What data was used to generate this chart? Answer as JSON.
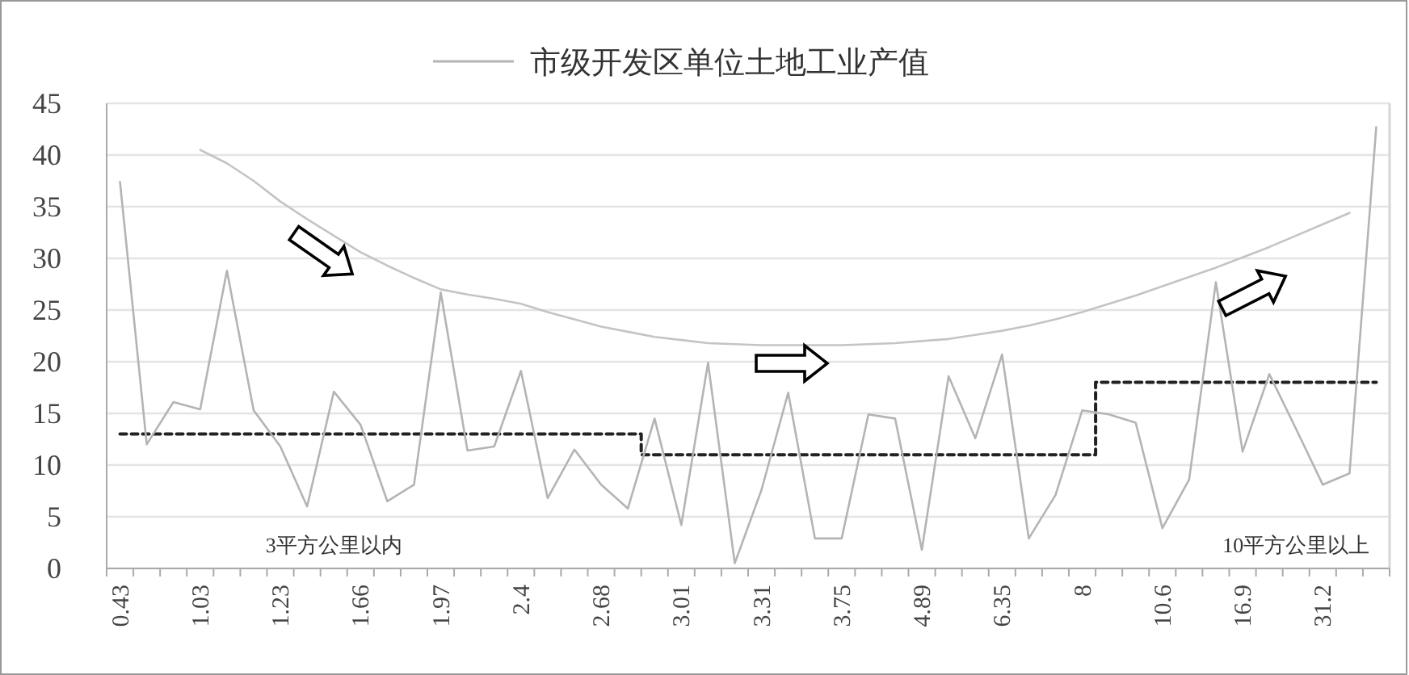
{
  "chart_data": {
    "type": "line",
    "categories": [
      "0.43",
      null,
      null,
      "1.03",
      null,
      null,
      "1.23",
      null,
      null,
      "1.66",
      null,
      null,
      "1.97",
      null,
      null,
      "2.4",
      null,
      null,
      "2.68",
      null,
      null,
      "3.01",
      null,
      null,
      "3.31",
      null,
      null,
      "3.75",
      null,
      null,
      "4.89",
      null,
      null,
      "6.35",
      null,
      null,
      "8",
      null,
      null,
      "10.6",
      null,
      null,
      "16.9",
      null,
      null,
      "31.2",
      null,
      null
    ],
    "series": [
      {
        "name": "市级开发区单位土地工业产值",
        "color": "#b4b4b4",
        "values": [
          37.4,
          12.0,
          16.1,
          15.4,
          28.8,
          15.3,
          11.8,
          6.0,
          17.1,
          13.9,
          6.5,
          8.1,
          26.7,
          11.4,
          11.8,
          19.1,
          6.8,
          11.5,
          8.1,
          5.8,
          14.5,
          4.2,
          19.9,
          0.5,
          7.6,
          17.0,
          2.9,
          2.9,
          14.9,
          14.5,
          1.8,
          18.6,
          12.6,
          20.7,
          2.9,
          7.1,
          15.3,
          14.9,
          14.1,
          3.9,
          8.6,
          27.7,
          11.3,
          18.8,
          13.5,
          8.1,
          9.2,
          42.7
        ]
      },
      {
        "type": "line",
        "color": "#c4c4c4",
        "values": [
          null,
          null,
          null,
          40.5,
          39.2,
          37.5,
          35.5,
          33.8,
          32.2,
          30.6,
          29.3,
          28.1,
          27.0,
          26.5,
          26.1,
          25.6,
          24.8,
          24.1,
          23.4,
          22.9,
          22.4,
          22.1,
          21.8,
          21.7,
          21.6,
          21.6,
          21.6,
          21.6,
          21.7,
          21.8,
          22.0,
          22.2,
          22.6,
          23.0,
          23.5,
          24.1,
          24.8,
          25.6,
          26.4,
          27.3,
          28.2,
          29.1,
          30.1,
          31.1,
          32.2,
          33.3,
          34.4,
          null
        ]
      },
      {
        "type": "step",
        "color": "#222222",
        "line_style": "dashed",
        "values": [
          13,
          13,
          13,
          13,
          13,
          13,
          13,
          13,
          13,
          13,
          13,
          13,
          13,
          13,
          13,
          13,
          13,
          13,
          13,
          13,
          11,
          11,
          11,
          11,
          11,
          11,
          11,
          11,
          11,
          11,
          11,
          11,
          11,
          11,
          11,
          11,
          11,
          18,
          18,
          18,
          18,
          18,
          18,
          18,
          18,
          18,
          18,
          18
        ]
      }
    ],
    "ylim": [
      0,
      45
    ],
    "yticks": [
      0,
      5,
      10,
      15,
      20,
      25,
      30,
      35,
      40,
      45
    ],
    "grid": "y",
    "legend": "top",
    "line_style": "solid",
    "marker": "none",
    "annotations": [
      "3平方公里以内",
      "10平方公里以上"
    ]
  }
}
